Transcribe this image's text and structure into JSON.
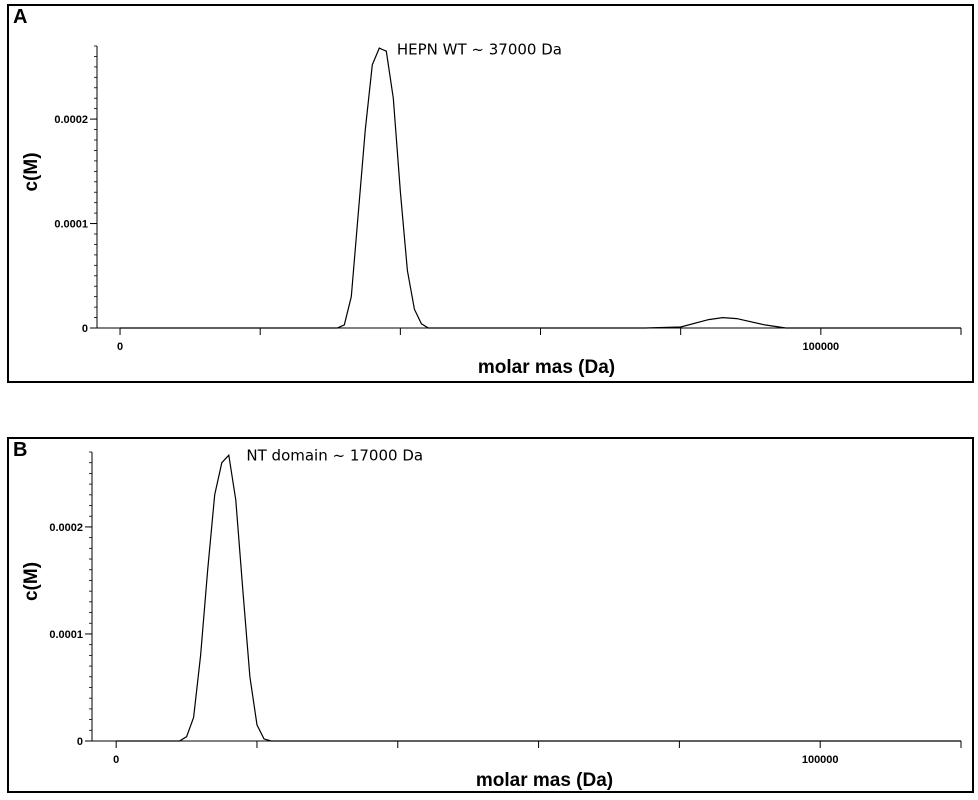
{
  "chart_data": [
    {
      "type": "line",
      "panel_label": "A",
      "xlabel": "molar mas (Da)",
      "ylabel": "c(M)",
      "xlim": [
        -4000,
        120000
      ],
      "ylim": [
        0,
        0.00027
      ],
      "x_ticks_labeled": [
        {
          "value": 0,
          "label": "0"
        },
        {
          "value": 100000,
          "label": "100000"
        }
      ],
      "x_tick_step": 20000,
      "y_ticks_labeled": [
        {
          "value": 0,
          "label": "0"
        },
        {
          "value": 0.0001,
          "label": "0.0001"
        },
        {
          "value": 0.0002,
          "label": "0.0002"
        }
      ],
      "y_minor_step": 1e-05,
      "annotation": {
        "text": "HEPN WT ~ 37000 Da",
        "x": 39500,
        "y": 0.000262
      },
      "series": [
        {
          "x": [
            0,
            31000,
            32000,
            33000,
            34000,
            35000,
            36000,
            37000,
            38000,
            39000,
            40000,
            41000,
            42000,
            43000,
            44000,
            46000,
            75000,
            80000,
            84000,
            86000,
            88000,
            92000,
            95000,
            100000,
            120000
          ],
          "y": [
            0,
            0,
            3e-06,
            3e-05,
            0.00011,
            0.00019,
            0.000252,
            0.000268,
            0.000265,
            0.00022,
            0.00013,
            5.5e-05,
            1.8e-05,
            4e-06,
            0,
            0,
            0,
            1e-06,
            8e-06,
            1e-05,
            9e-06,
            3e-06,
            0,
            0,
            0
          ]
        }
      ]
    },
    {
      "type": "line",
      "panel_label": "B",
      "xlabel": "molar mas (Da)",
      "ylabel": "c(M)",
      "xlim": [
        -4000,
        120000
      ],
      "ylim": [
        0,
        0.00027
      ],
      "x_ticks_labeled": [
        {
          "value": 0,
          "label": "0"
        },
        {
          "value": 100000,
          "label": "100000"
        }
      ],
      "x_tick_step": 20000,
      "y_ticks_labeled": [
        {
          "value": 0,
          "label": "0"
        },
        {
          "value": 0.0001,
          "label": "0.0001"
        },
        {
          "value": 0.0002,
          "label": "0.0002"
        }
      ],
      "y_minor_step": 1e-05,
      "annotation": {
        "text": "NT domain ~ 17000 Da",
        "x": 18500,
        "y": 0.000262
      },
      "series": [
        {
          "x": [
            0,
            9000,
            10000,
            11000,
            12000,
            13000,
            14000,
            15000,
            16000,
            17000,
            18000,
            19000,
            20000,
            21000,
            22000,
            120000
          ],
          "y": [
            0,
            0,
            4e-06,
            2.2e-05,
            8e-05,
            0.00016,
            0.00023,
            0.00026,
            0.000267,
            0.000225,
            0.00014,
            6e-05,
            1.5e-05,
            2e-06,
            0,
            0
          ]
        }
      ]
    }
  ]
}
